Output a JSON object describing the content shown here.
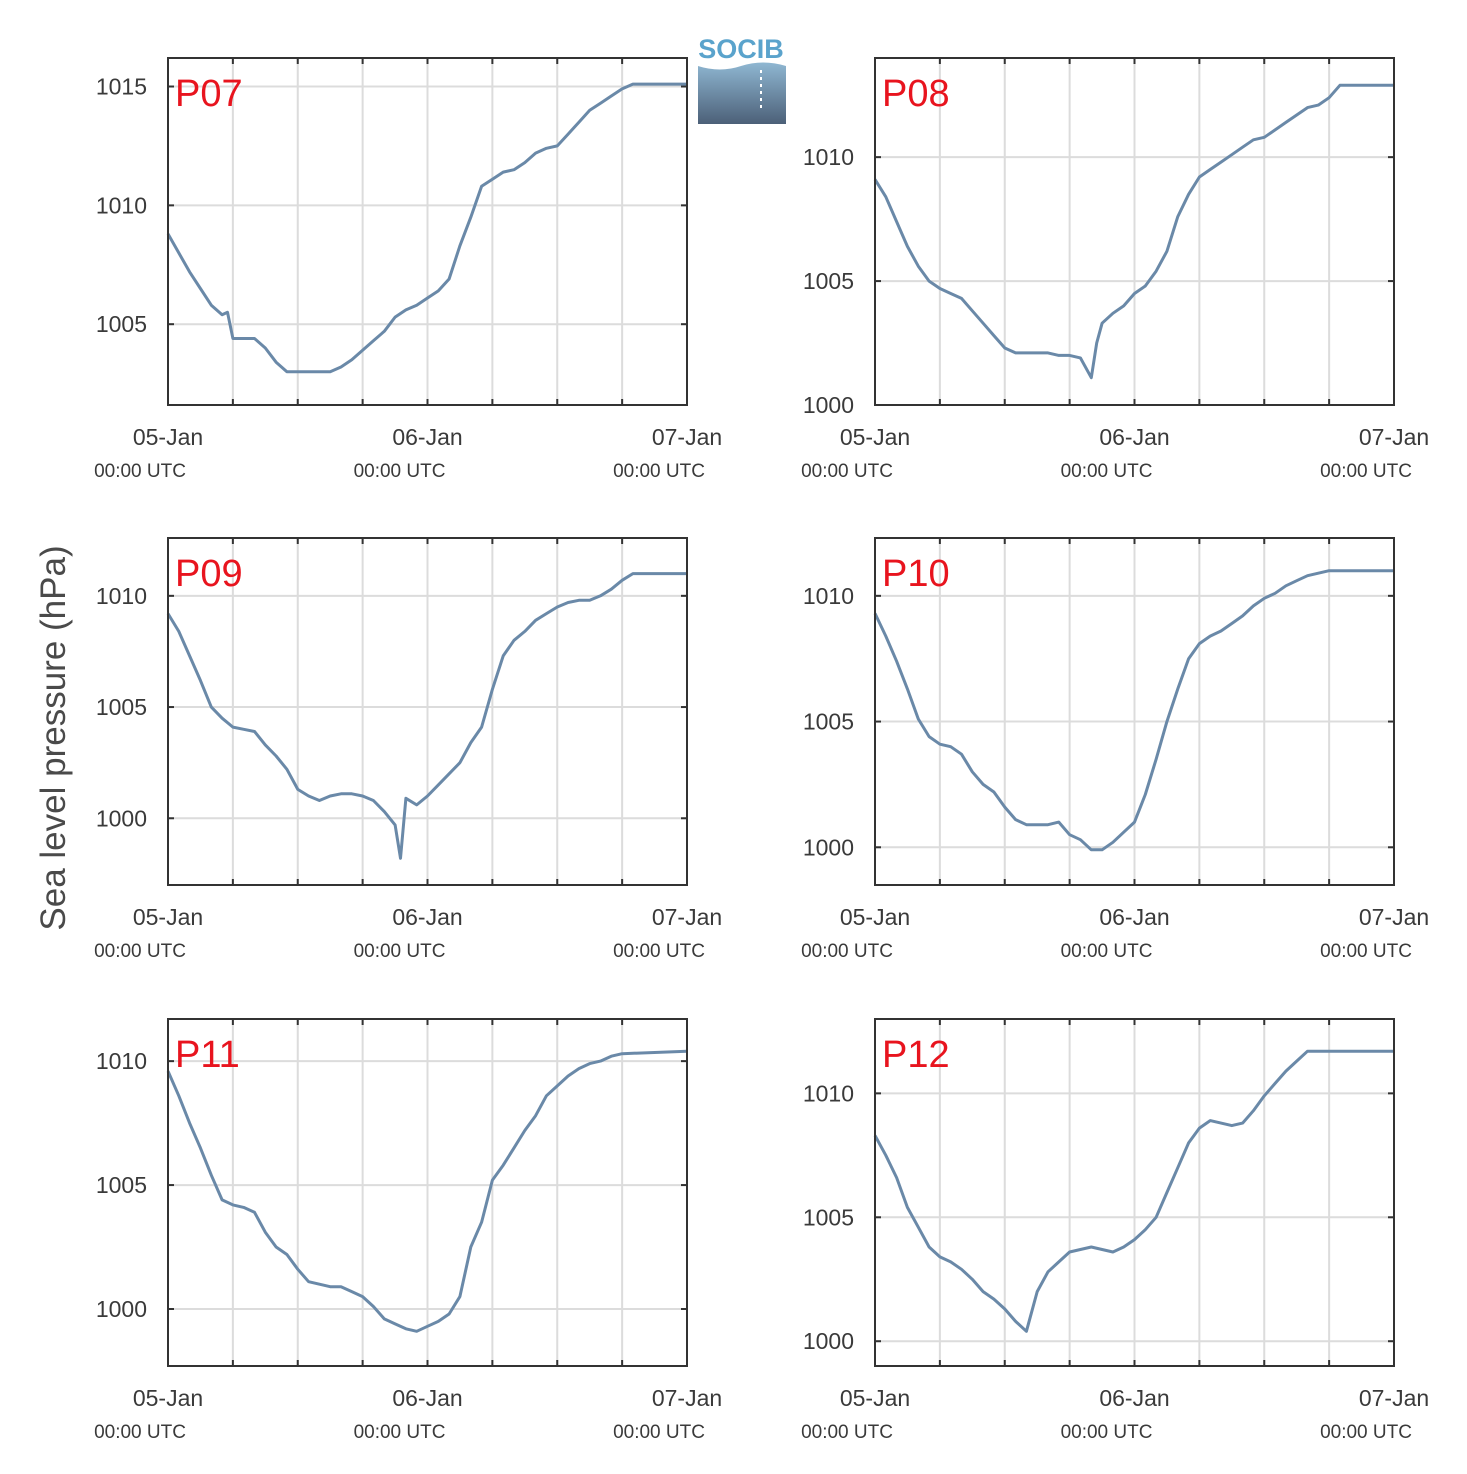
{
  "ylabel": "Sea level pressure (hPa)",
  "logo": {
    "text": "SOCIB"
  },
  "colors": {
    "line": "#6a89a8",
    "label": "#e8141e",
    "grid": "#dcdcdc",
    "axis": "#333333",
    "logo_text": "#5aa3cc",
    "logo_top": "#8fb7d2",
    "logo_bottom": "#4c6078"
  },
  "chart_data": [
    {
      "type": "line",
      "name": "P07",
      "ylim": [
        1001.6,
        1016.2
      ],
      "yticks": [
        1005,
        1010,
        1015
      ],
      "xlim": [
        0,
        48
      ],
      "xticks_major": [
        "05-Jan 00:00 UTC",
        "06-Jan 00:00 UTC",
        "07-Jan 00:00 UTC"
      ],
      "xticks_minor_hours": [
        6,
        12,
        18,
        30,
        36,
        42
      ],
      "points": [
        [
          0,
          1008.8
        ],
        [
          1,
          1008
        ],
        [
          2,
          1007.2
        ],
        [
          3,
          1006.5
        ],
        [
          4,
          1005.8
        ],
        [
          5,
          1005.4
        ],
        [
          5.5,
          1005.5
        ],
        [
          6,
          1004.4
        ],
        [
          7,
          1004.4
        ],
        [
          8,
          1004.4
        ],
        [
          9,
          1004
        ],
        [
          10,
          1003.4
        ],
        [
          11,
          1003
        ],
        [
          12,
          1003
        ],
        [
          13,
          1003
        ],
        [
          14,
          1003
        ],
        [
          15,
          1003
        ],
        [
          16,
          1003.2
        ],
        [
          17,
          1003.5
        ],
        [
          18,
          1003.9
        ],
        [
          19,
          1004.3
        ],
        [
          20,
          1004.7
        ],
        [
          21,
          1005.3
        ],
        [
          22,
          1005.6
        ],
        [
          23,
          1005.8
        ],
        [
          24,
          1006.1
        ],
        [
          25,
          1006.4
        ],
        [
          26,
          1006.9
        ],
        [
          27,
          1008.3
        ],
        [
          28,
          1009.5
        ],
        [
          29,
          1010.8
        ],
        [
          30,
          1011.1
        ],
        [
          31,
          1011.4
        ],
        [
          32,
          1011.5
        ],
        [
          33,
          1011.8
        ],
        [
          34,
          1012.2
        ],
        [
          35,
          1012.4
        ],
        [
          36,
          1012.5
        ],
        [
          37,
          1013
        ],
        [
          38,
          1013.5
        ],
        [
          39,
          1014
        ],
        [
          40,
          1014.3
        ],
        [
          41,
          1014.6
        ],
        [
          42,
          1014.9
        ],
        [
          43,
          1015.1
        ],
        [
          48,
          1015.1
        ]
      ]
    },
    {
      "type": "line",
      "name": "P08",
      "ylim": [
        1000,
        1014
      ],
      "yticks": [
        1000,
        1005,
        1010
      ],
      "xlim": [
        0,
        48
      ],
      "xticks_major": [
        "05-Jan 00:00 UTC",
        "06-Jan 00:00 UTC",
        "07-Jan 00:00 UTC"
      ],
      "xticks_minor_hours": [
        6,
        12,
        18,
        30,
        36,
        42
      ],
      "points": [
        [
          0,
          1009.1
        ],
        [
          1,
          1008.4
        ],
        [
          2,
          1007.4
        ],
        [
          3,
          1006.4
        ],
        [
          4,
          1005.6
        ],
        [
          5,
          1005
        ],
        [
          6,
          1004.7
        ],
        [
          7,
          1004.5
        ],
        [
          8,
          1004.3
        ],
        [
          9,
          1003.8
        ],
        [
          10,
          1003.3
        ],
        [
          11,
          1002.8
        ],
        [
          12,
          1002.3
        ],
        [
          13,
          1002.1
        ],
        [
          14,
          1002.1
        ],
        [
          15,
          1002.1
        ],
        [
          16,
          1002.1
        ],
        [
          17,
          1002
        ],
        [
          18,
          1002
        ],
        [
          19,
          1001.9
        ],
        [
          20,
          1001.1
        ],
        [
          20.5,
          1002.5
        ],
        [
          21,
          1003.3
        ],
        [
          22,
          1003.7
        ],
        [
          23,
          1004
        ],
        [
          24,
          1004.5
        ],
        [
          25,
          1004.8
        ],
        [
          26,
          1005.4
        ],
        [
          27,
          1006.2
        ],
        [
          28,
          1007.6
        ],
        [
          29,
          1008.5
        ],
        [
          30,
          1009.2
        ],
        [
          31,
          1009.5
        ],
        [
          32,
          1009.8
        ],
        [
          33,
          1010.1
        ],
        [
          34,
          1010.4
        ],
        [
          35,
          1010.7
        ],
        [
          36,
          1010.8
        ],
        [
          37,
          1011.1
        ],
        [
          38,
          1011.4
        ],
        [
          39,
          1011.7
        ],
        [
          40,
          1012
        ],
        [
          41,
          1012.1
        ],
        [
          42,
          1012.4
        ],
        [
          43,
          1012.9
        ],
        [
          48,
          1012.9
        ]
      ]
    },
    {
      "type": "line",
      "name": "P09",
      "ylim": [
        997,
        1012.6
      ],
      "yticks": [
        1000,
        1005,
        1010
      ],
      "xlim": [
        0,
        48
      ],
      "xticks_major": [
        "05-Jan 00:00 UTC",
        "06-Jan 00:00 UTC",
        "07-Jan 00:00 UTC"
      ],
      "xticks_minor_hours": [
        6,
        12,
        18,
        30,
        36,
        42
      ],
      "points": [
        [
          0,
          1009.2
        ],
        [
          1,
          1008.4
        ],
        [
          2,
          1007.3
        ],
        [
          3,
          1006.2
        ],
        [
          4,
          1005
        ],
        [
          5,
          1004.5
        ],
        [
          6,
          1004.1
        ],
        [
          7,
          1004
        ],
        [
          8,
          1003.9
        ],
        [
          9,
          1003.3
        ],
        [
          10,
          1002.8
        ],
        [
          11,
          1002.2
        ],
        [
          12,
          1001.3
        ],
        [
          13,
          1001
        ],
        [
          14,
          1000.8
        ],
        [
          15,
          1001
        ],
        [
          16,
          1001.1
        ],
        [
          17,
          1001.1
        ],
        [
          18,
          1001
        ],
        [
          19,
          1000.8
        ],
        [
          20,
          1000.3
        ],
        [
          21,
          999.7
        ],
        [
          21.5,
          998.2
        ],
        [
          22,
          1000.9
        ],
        [
          23,
          1000.6
        ],
        [
          24,
          1001
        ],
        [
          25,
          1001.5
        ],
        [
          26,
          1002
        ],
        [
          27,
          1002.5
        ],
        [
          28,
          1003.4
        ],
        [
          29,
          1004.1
        ],
        [
          30,
          1005.8
        ],
        [
          31,
          1007.3
        ],
        [
          32,
          1008
        ],
        [
          33,
          1008.4
        ],
        [
          34,
          1008.9
        ],
        [
          35,
          1009.2
        ],
        [
          36,
          1009.5
        ],
        [
          37,
          1009.7
        ],
        [
          38,
          1009.8
        ],
        [
          39,
          1009.8
        ],
        [
          40,
          1010
        ],
        [
          41,
          1010.3
        ],
        [
          42,
          1010.7
        ],
        [
          43,
          1011
        ],
        [
          48,
          1011
        ]
      ]
    },
    {
      "type": "line",
      "name": "P10",
      "ylim": [
        998.5,
        1012.3
      ],
      "yticks": [
        1000,
        1005,
        1010
      ],
      "xlim": [
        0,
        48
      ],
      "xticks_major": [
        "05-Jan 00:00 UTC",
        "06-Jan 00:00 UTC",
        "07-Jan 00:00 UTC"
      ],
      "xticks_minor_hours": [
        6,
        12,
        18,
        30,
        36,
        42
      ],
      "points": [
        [
          0,
          1009.3
        ],
        [
          1,
          1008.4
        ],
        [
          2,
          1007.4
        ],
        [
          3,
          1006.3
        ],
        [
          4,
          1005.1
        ],
        [
          5,
          1004.4
        ],
        [
          6,
          1004.1
        ],
        [
          7,
          1004
        ],
        [
          8,
          1003.7
        ],
        [
          9,
          1003
        ],
        [
          10,
          1002.5
        ],
        [
          11,
          1002.2
        ],
        [
          12,
          1001.6
        ],
        [
          13,
          1001.1
        ],
        [
          14,
          1000.9
        ],
        [
          15,
          1000.9
        ],
        [
          16,
          1000.9
        ],
        [
          17,
          1001
        ],
        [
          18,
          1000.5
        ],
        [
          19,
          1000.3
        ],
        [
          20,
          999.9
        ],
        [
          21,
          999.9
        ],
        [
          22,
          1000.2
        ],
        [
          23,
          1000.6
        ],
        [
          24,
          1001
        ],
        [
          25,
          1002.1
        ],
        [
          26,
          1003.5
        ],
        [
          27,
          1005
        ],
        [
          28,
          1006.3
        ],
        [
          29,
          1007.5
        ],
        [
          30,
          1008.1
        ],
        [
          31,
          1008.4
        ],
        [
          32,
          1008.6
        ],
        [
          33,
          1008.9
        ],
        [
          34,
          1009.2
        ],
        [
          35,
          1009.6
        ],
        [
          36,
          1009.9
        ],
        [
          37,
          1010.1
        ],
        [
          38,
          1010.4
        ],
        [
          39,
          1010.6
        ],
        [
          40,
          1010.8
        ],
        [
          41,
          1010.9
        ],
        [
          42,
          1011
        ],
        [
          48,
          1011
        ]
      ]
    },
    {
      "type": "line",
      "name": "P11",
      "ylim": [
        997.7,
        1011.7
      ],
      "yticks": [
        1000,
        1005,
        1010
      ],
      "xlim": [
        0,
        48
      ],
      "xticks_major": [
        "05-Jan 00:00 UTC",
        "06-Jan 00:00 UTC",
        "07-Jan 00:00 UTC"
      ],
      "xticks_minor_hours": [
        6,
        12,
        18,
        30,
        36,
        42
      ],
      "points": [
        [
          0,
          1009.6
        ],
        [
          1,
          1008.6
        ],
        [
          2,
          1007.5
        ],
        [
          3,
          1006.5
        ],
        [
          4,
          1005.4
        ],
        [
          5,
          1004.4
        ],
        [
          6,
          1004.2
        ],
        [
          7,
          1004.1
        ],
        [
          8,
          1003.9
        ],
        [
          9,
          1003.1
        ],
        [
          10,
          1002.5
        ],
        [
          11,
          1002.2
        ],
        [
          12,
          1001.6
        ],
        [
          13,
          1001.1
        ],
        [
          14,
          1001
        ],
        [
          15,
          1000.9
        ],
        [
          16,
          1000.9
        ],
        [
          17,
          1000.7
        ],
        [
          18,
          1000.5
        ],
        [
          19,
          1000.1
        ],
        [
          20,
          999.6
        ],
        [
          21,
          999.4
        ],
        [
          22,
          999.2
        ],
        [
          23,
          999.1
        ],
        [
          24,
          999.3
        ],
        [
          25,
          999.5
        ],
        [
          26,
          999.8
        ],
        [
          27,
          1000.5
        ],
        [
          28,
          1002.5
        ],
        [
          29,
          1003.5
        ],
        [
          30,
          1005.2
        ],
        [
          31,
          1005.8
        ],
        [
          32,
          1006.5
        ],
        [
          33,
          1007.2
        ],
        [
          34,
          1007.8
        ],
        [
          35,
          1008.6
        ],
        [
          36,
          1009
        ],
        [
          37,
          1009.4
        ],
        [
          38,
          1009.7
        ],
        [
          39,
          1009.9
        ],
        [
          40,
          1010
        ],
        [
          41,
          1010.2
        ],
        [
          42,
          1010.3
        ],
        [
          48,
          1010.4
        ]
      ]
    },
    {
      "type": "line",
      "name": "P12",
      "ylim": [
        999,
        1013
      ],
      "yticks": [
        1000,
        1005,
        1010
      ],
      "xlim": [
        0,
        48
      ],
      "xticks_major": [
        "05-Jan 00:00 UTC",
        "06-Jan 00:00 UTC",
        "07-Jan 00:00 UTC"
      ],
      "xticks_minor_hours": [
        6,
        12,
        18,
        30,
        36,
        42
      ],
      "points": [
        [
          0,
          1008.3
        ],
        [
          1,
          1007.5
        ],
        [
          2,
          1006.6
        ],
        [
          3,
          1005.4
        ],
        [
          4,
          1004.6
        ],
        [
          5,
          1003.8
        ],
        [
          6,
          1003.4
        ],
        [
          7,
          1003.2
        ],
        [
          8,
          1002.9
        ],
        [
          9,
          1002.5
        ],
        [
          10,
          1002
        ],
        [
          11,
          1001.7
        ],
        [
          12,
          1001.3
        ],
        [
          13,
          1000.8
        ],
        [
          14,
          1000.4
        ],
        [
          15,
          1002
        ],
        [
          16,
          1002.8
        ],
        [
          17,
          1003.2
        ],
        [
          18,
          1003.6
        ],
        [
          19,
          1003.7
        ],
        [
          20,
          1003.8
        ],
        [
          21,
          1003.7
        ],
        [
          22,
          1003.6
        ],
        [
          23,
          1003.8
        ],
        [
          24,
          1004.1
        ],
        [
          25,
          1004.5
        ],
        [
          26,
          1005
        ],
        [
          27,
          1006
        ],
        [
          28,
          1007
        ],
        [
          29,
          1008
        ],
        [
          30,
          1008.6
        ],
        [
          31,
          1008.9
        ],
        [
          32,
          1008.8
        ],
        [
          33,
          1008.7
        ],
        [
          34,
          1008.8
        ],
        [
          35,
          1009.3
        ],
        [
          36,
          1009.9
        ],
        [
          37,
          1010.4
        ],
        [
          38,
          1010.9
        ],
        [
          39,
          1011.3
        ],
        [
          40,
          1011.7
        ],
        [
          48,
          1011.7
        ]
      ]
    }
  ]
}
